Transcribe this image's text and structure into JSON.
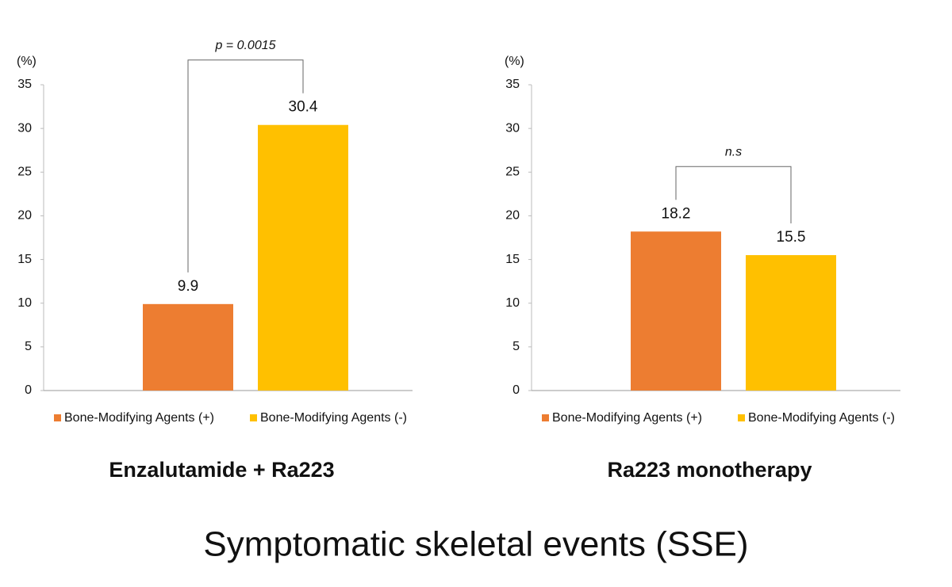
{
  "title": "Symptomatic skeletal events (SSE)",
  "chart_data": [
    {
      "type": "bar",
      "title": "Enzalutamide + Ra223",
      "y_label": "(%)",
      "annotation": "p = 0.0015",
      "categories": [
        null
      ],
      "series": [
        {
          "name": "Bone-Modifying Agents (+)",
          "color": "#ed7d31",
          "values": [
            9.9
          ]
        },
        {
          "name": "Bone-Modifying Agents (-)",
          "color": "#ffc000",
          "values": [
            30.4
          ]
        }
      ],
      "ylim": [
        0,
        35
      ],
      "yticks": [
        0,
        5,
        10,
        15,
        20,
        25,
        30,
        35
      ],
      "grid": false,
      "legend": "bottom"
    },
    {
      "type": "bar",
      "title": "Ra223 monotherapy",
      "y_label": "(%)",
      "annotation": "n.s",
      "categories": [
        null
      ],
      "series": [
        {
          "name": "Bone-Modifying Agents (+)",
          "color": "#ed7d31",
          "values": [
            18.2
          ]
        },
        {
          "name": "Bone-Modifying Agents (-)",
          "color": "#ffc000",
          "values": [
            15.5
          ]
        }
      ],
      "ylim": [
        0,
        35
      ],
      "yticks": [
        0,
        5,
        10,
        15,
        20,
        25,
        30,
        35
      ],
      "grid": false,
      "legend": "bottom"
    }
  ]
}
